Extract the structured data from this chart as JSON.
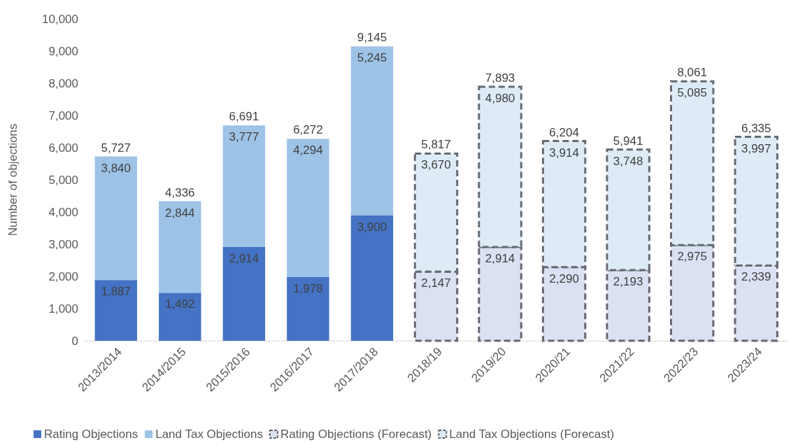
{
  "chart_data": {
    "type": "bar",
    "stacked": true,
    "ylabel": "Number of objections",
    "categories": [
      "2013/2014",
      "2014/2015",
      "2015/2016",
      "2016/2017",
      "2017/2018",
      "2018/19",
      "2019/20",
      "2020/21",
      "2021/22",
      "2022/23",
      "2023/24"
    ],
    "series": [
      {
        "name": "Rating Objections",
        "color": "#4472c4",
        "values": [
          1887,
          1492,
          2914,
          1978,
          3900,
          null,
          null,
          null,
          null,
          null,
          null
        ],
        "value_labels": [
          "1,887",
          "1,492",
          "2,914",
          "1,978",
          "3,900",
          null,
          null,
          null,
          null,
          null,
          null
        ]
      },
      {
        "name": "Land Tax Objections",
        "color": "#9dc3e6",
        "values": [
          3840,
          2844,
          3777,
          4294,
          5245,
          null,
          null,
          null,
          null,
          null,
          null
        ],
        "value_labels": [
          "3,840",
          "2,844",
          "3,777",
          "4,294",
          "5,245",
          null,
          null,
          null,
          null,
          null,
          null
        ]
      },
      {
        "name": "Rating Objections (Forecast)",
        "color": "#dae1f3",
        "line_style": "dashed",
        "values": [
          null,
          null,
          null,
          null,
          null,
          2147,
          2914,
          2290,
          2193,
          2975,
          2339
        ],
        "value_labels": [
          null,
          null,
          null,
          null,
          null,
          "2,147",
          "2,914",
          "2,290",
          "2,193",
          "2,975",
          "2,339"
        ]
      },
      {
        "name": "Land Tax Objections (Forecast)",
        "color": "#deebf7",
        "line_style": "dashed",
        "values": [
          null,
          null,
          null,
          null,
          null,
          3670,
          4980,
          3914,
          3748,
          5085,
          3997
        ],
        "value_labels": [
          null,
          null,
          null,
          null,
          null,
          "3,670",
          "4,980",
          "3,914",
          "3,748",
          "5,085",
          "3,997"
        ]
      }
    ],
    "totals": [
      "5,727",
      "4,336",
      "6,691",
      "6,272",
      "9,145",
      "5,817",
      "7,893",
      "6,204",
      "5,941",
      "8,061",
      "6,335"
    ],
    "ylim": [
      0,
      10000
    ],
    "yticks": [
      0,
      {
        "value": 1000,
        "label": "1,000"
      },
      {
        "value": 2000,
        "label": "2,000"
      },
      {
        "value": 3000,
        "label": "3,000"
      },
      {
        "value": 4000,
        "label": "4,000"
      },
      {
        "value": 5000,
        "label": "5,000"
      },
      {
        "value": 6000,
        "label": "6,000"
      },
      {
        "value": 7000,
        "label": "7,000"
      },
      {
        "value": 8000,
        "label": "8,000"
      },
      {
        "value": 9000,
        "label": "9,000"
      },
      {
        "value": 10000,
        "label": "10,000"
      }
    ],
    "grid": false,
    "legend": "bottom"
  }
}
